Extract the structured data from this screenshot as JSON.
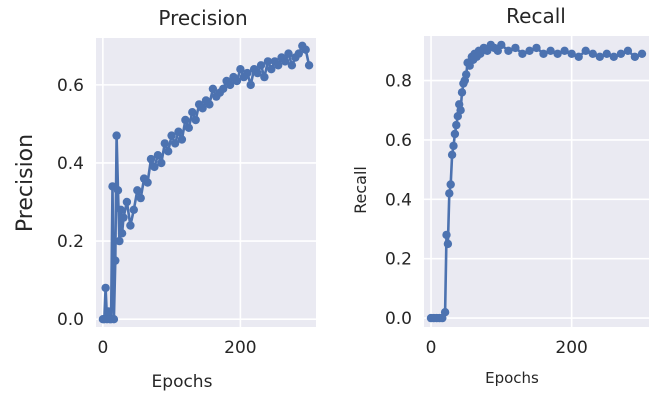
{
  "chart_data": [
    {
      "type": "line",
      "title": "Precision",
      "xlabel": "Epochs",
      "ylabel": "Precision",
      "xlim": [
        -10,
        310
      ],
      "ylim": [
        -0.02,
        0.72
      ],
      "xticks": [
        0,
        200
      ],
      "yticks": [
        0.0,
        0.2,
        0.4,
        0.6
      ],
      "grid": true,
      "markers": true,
      "color": "#4c72b0",
      "series": [
        {
          "x": [
            0,
            2,
            4,
            6,
            8,
            10,
            12,
            14,
            16,
            18,
            20,
            22,
            24,
            26,
            28,
            30,
            35,
            40,
            45,
            50,
            55,
            60,
            65,
            70,
            75,
            80,
            85,
            90,
            95,
            100,
            105,
            110,
            115,
            120,
            125,
            130,
            135,
            140,
            145,
            150,
            155,
            160,
            165,
            170,
            175,
            180,
            185,
            190,
            195,
            200,
            205,
            210,
            215,
            220,
            225,
            230,
            235,
            240,
            245,
            250,
            255,
            260,
            265,
            270,
            275,
            280,
            285,
            290,
            295,
            300
          ],
          "y": [
            0.0,
            0.0,
            0.08,
            0.0,
            0.02,
            0.0,
            0.0,
            0.34,
            0.0,
            0.15,
            0.47,
            0.33,
            0.2,
            0.28,
            0.22,
            0.26,
            0.3,
            0.24,
            0.28,
            0.33,
            0.31,
            0.36,
            0.35,
            0.41,
            0.39,
            0.42,
            0.4,
            0.45,
            0.43,
            0.47,
            0.45,
            0.48,
            0.46,
            0.51,
            0.49,
            0.53,
            0.51,
            0.55,
            0.54,
            0.56,
            0.55,
            0.59,
            0.57,
            0.58,
            0.59,
            0.61,
            0.6,
            0.62,
            0.61,
            0.64,
            0.62,
            0.63,
            0.6,
            0.64,
            0.63,
            0.65,
            0.62,
            0.66,
            0.64,
            0.66,
            0.65,
            0.67,
            0.66,
            0.68,
            0.65,
            0.67,
            0.68,
            0.7,
            0.69,
            0.65
          ]
        }
      ]
    },
    {
      "type": "line",
      "title": "Recall",
      "xlabel": "Epochs",
      "ylabel": "Recall",
      "xlim": [
        -10,
        310
      ],
      "ylim": [
        -0.03,
        0.95
      ],
      "xticks": [
        0,
        200
      ],
      "yticks": [
        0.0,
        0.2,
        0.4,
        0.6,
        0.8
      ],
      "grid": true,
      "markers": true,
      "color": "#4c72b0",
      "series": [
        {
          "x": [
            0,
            4,
            8,
            12,
            16,
            20,
            22,
            24,
            26,
            28,
            30,
            32,
            34,
            36,
            38,
            40,
            42,
            44,
            46,
            48,
            50,
            52,
            55,
            58,
            60,
            62,
            65,
            68,
            70,
            75,
            80,
            85,
            90,
            95,
            100,
            110,
            120,
            130,
            140,
            150,
            160,
            170,
            180,
            190,
            200,
            210,
            220,
            230,
            240,
            250,
            260,
            270,
            280,
            290,
            300
          ],
          "y": [
            0.0,
            0.0,
            0.0,
            0.0,
            0.0,
            0.02,
            0.28,
            0.25,
            0.42,
            0.45,
            0.55,
            0.58,
            0.62,
            0.65,
            0.68,
            0.72,
            0.7,
            0.76,
            0.79,
            0.8,
            0.82,
            0.86,
            0.85,
            0.88,
            0.87,
            0.89,
            0.88,
            0.9,
            0.89,
            0.91,
            0.9,
            0.92,
            0.91,
            0.9,
            0.92,
            0.9,
            0.91,
            0.89,
            0.9,
            0.91,
            0.89,
            0.9,
            0.89,
            0.9,
            0.89,
            0.88,
            0.9,
            0.89,
            0.88,
            0.89,
            0.88,
            0.89,
            0.9,
            0.88,
            0.89
          ]
        }
      ]
    }
  ]
}
